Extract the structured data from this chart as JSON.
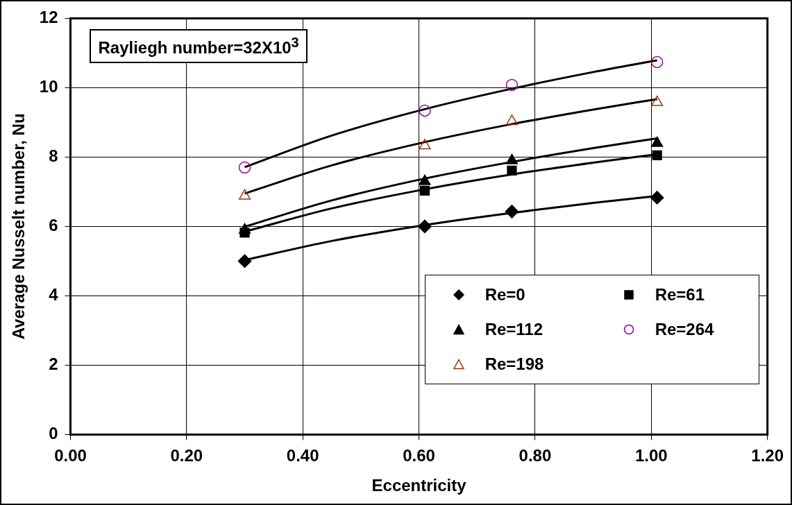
{
  "chart_data": {
    "type": "scatter",
    "xlabel": "Eccentricity",
    "ylabel": "Average Nusselt number, Nu",
    "annotations": [
      "Rayliegh number=32X10$^{3}$"
    ],
    "xlim": [
      0,
      1.2
    ],
    "ylim": [
      0,
      12
    ],
    "xticks": [
      {
        "value": 0,
        "label": "0.00"
      },
      {
        "value": 0.2,
        "label": "0.20"
      },
      {
        "value": 0.4,
        "label": "0.40"
      },
      {
        "value": 0.6,
        "label": "0.60"
      },
      {
        "value": 0.8,
        "label": "0.80"
      },
      {
        "value": 1,
        "label": "1.00"
      },
      {
        "value": 1.2,
        "label": "1.20"
      }
    ],
    "yticks": [
      0,
      2,
      4,
      6,
      8,
      10,
      12
    ],
    "grid": true,
    "legend": "bottom right",
    "series": [
      {
        "name": "Re=0",
        "color": "#000000",
        "marker": "diamond",
        "x": [
          0.3,
          0.61,
          0.76,
          1.01
        ],
        "values": [
          5.0,
          6.0,
          6.43,
          6.83
        ]
      },
      {
        "name": "Re=61",
        "color": "#000000",
        "marker": "square",
        "x": [
          0.3,
          0.61,
          0.76,
          1.01
        ],
        "values": [
          5.82,
          7.03,
          7.61,
          8.05
        ]
      },
      {
        "name": "Re=112",
        "color": "#000000",
        "marker": "triangle",
        "x": [
          0.3,
          0.61,
          0.76,
          1.01
        ],
        "values": [
          5.9,
          7.3,
          7.9,
          8.4
        ]
      },
      {
        "name": "Re=264",
        "color": "#990099",
        "marker": "circle",
        "x": [
          0.3,
          0.61,
          0.76,
          1.01
        ],
        "values": [
          7.7,
          9.34,
          10.08,
          10.74
        ]
      },
      {
        "name": "Re=198",
        "color": "#993300",
        "marker": "triangle",
        "x": [
          0.3,
          0.61,
          0.76,
          1.01
        ],
        "values": [
          6.88,
          8.33,
          9.03,
          9.58
        ]
      },
      {
        "type": "line",
        "color": "#000000",
        "marker": "none",
        "x": [
          0.3,
          0.45,
          0.61,
          0.76,
          0.9,
          1.01
        ],
        "values": [
          5.03,
          5.58,
          6.04,
          6.39,
          6.68,
          6.88
        ]
      },
      {
        "type": "line",
        "color": "#000000",
        "marker": "none",
        "x": [
          0.3,
          0.45,
          0.61,
          0.76,
          0.9,
          1.01
        ],
        "values": [
          5.85,
          6.52,
          7.07,
          7.5,
          7.84,
          8.08
        ]
      },
      {
        "type": "line",
        "color": "#000000",
        "marker": "none",
        "x": [
          0.3,
          0.45,
          0.61,
          0.76,
          0.9,
          1.01
        ],
        "values": [
          5.99,
          6.75,
          7.38,
          7.86,
          8.26,
          8.54
        ]
      },
      {
        "type": "line",
        "color": "#000000",
        "marker": "none",
        "x": [
          0.3,
          0.45,
          0.61,
          0.76,
          0.9,
          1.01
        ],
        "values": [
          6.95,
          7.76,
          8.43,
          8.95,
          9.37,
          9.67
        ]
      },
      {
        "type": "line",
        "color": "#000000",
        "marker": "none",
        "x": [
          0.3,
          0.45,
          0.61,
          0.76,
          0.9,
          1.01
        ],
        "values": [
          7.71,
          8.62,
          9.38,
          9.97,
          10.45,
          10.79
        ]
      }
    ]
  }
}
